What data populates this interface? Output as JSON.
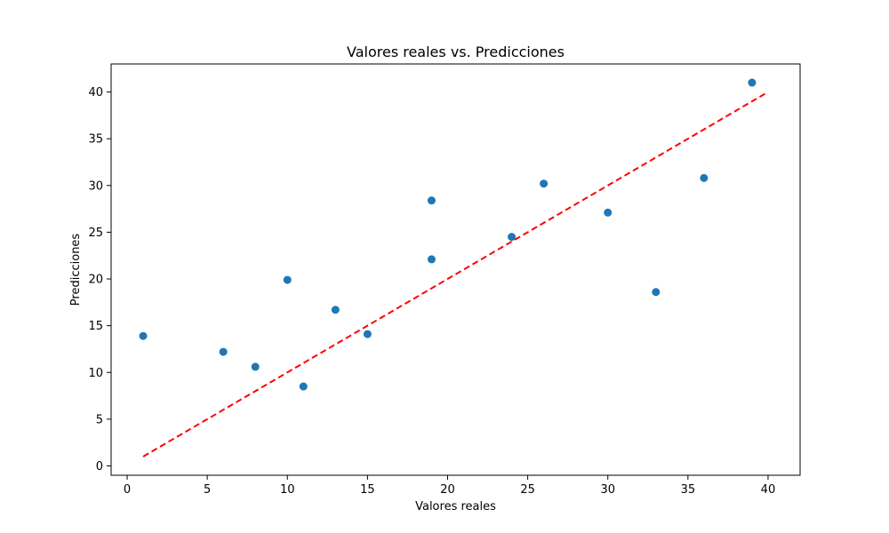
{
  "chart_data": {
    "type": "scatter",
    "title": "Valores reales vs. Predicciones",
    "xlabel": "Valores reales",
    "ylabel": "Predicciones",
    "xlim": [
      -1,
      42
    ],
    "ylim": [
      -1,
      43
    ],
    "xticks": [
      0,
      5,
      10,
      15,
      20,
      25,
      30,
      35,
      40
    ],
    "yticks": [
      0,
      5,
      10,
      15,
      20,
      25,
      30,
      35,
      40
    ],
    "grid": false,
    "points": {
      "color": "#1f77b4",
      "x": [
        1,
        6,
        8,
        10,
        11,
        13,
        15,
        19,
        19,
        24,
        26,
        30,
        33,
        36,
        39
      ],
      "y": [
        13.9,
        12.2,
        10.6,
        19.9,
        8.5,
        16.7,
        14.1,
        22.1,
        28.4,
        24.5,
        30.2,
        27.1,
        18.6,
        30.8,
        41.0
      ]
    },
    "reference_line": {
      "style": "dashed",
      "color": "#ff0000",
      "x": [
        1,
        40
      ],
      "y": [
        1,
        40
      ]
    }
  }
}
